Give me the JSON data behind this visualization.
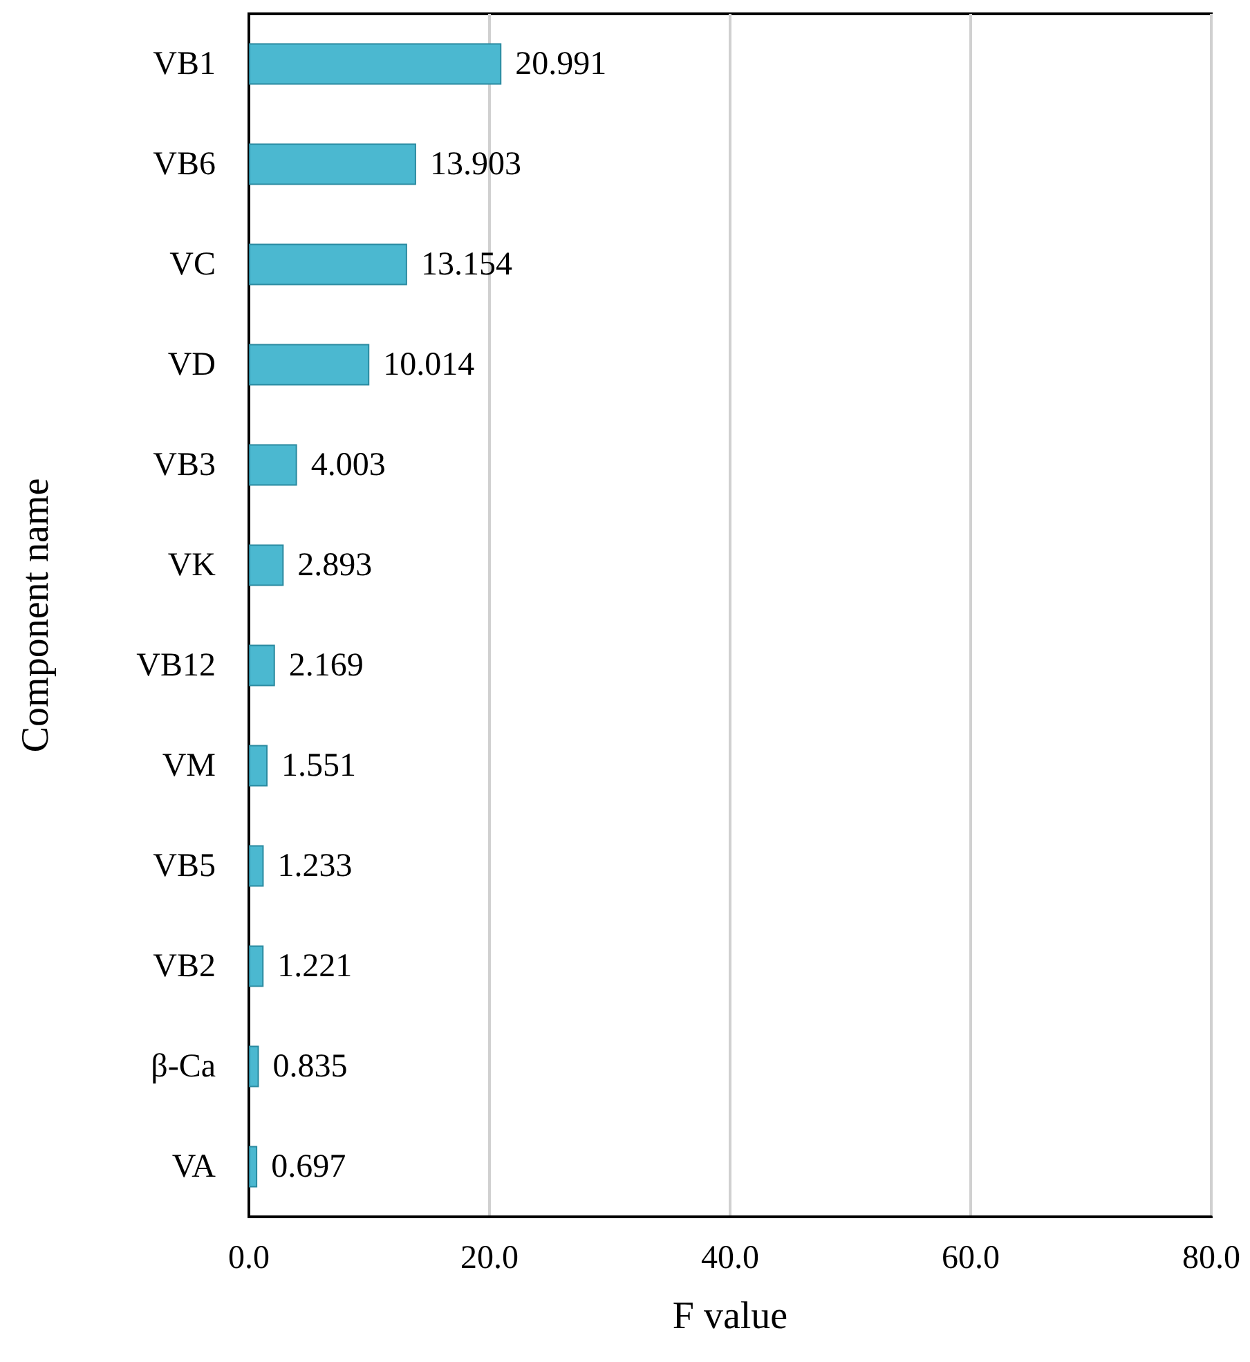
{
  "chart_data": {
    "type": "bar",
    "orientation": "horizontal",
    "xlabel": "F value",
    "ylabel": "Component name",
    "categories": [
      "VB1",
      "VB6",
      "VC",
      "VD",
      "VB3",
      "VK",
      "VB12",
      "VM",
      "VB5",
      "VB2",
      "β-Ca",
      "VA"
    ],
    "values": [
      20.991,
      13.903,
      13.154,
      10.014,
      4.003,
      2.893,
      2.169,
      1.551,
      1.233,
      1.221,
      0.835,
      0.697
    ],
    "color": "#4bb8d0",
    "xlim": [
      0,
      80
    ],
    "xticks": [
      {
        "value": 0,
        "label": "0.0"
      },
      {
        "value": 20,
        "label": "20.0"
      },
      {
        "value": 40,
        "label": "40.0"
      },
      {
        "value": 60,
        "label": "60.0"
      },
      {
        "value": 80,
        "label": "80.0"
      }
    ],
    "grid": "x",
    "data_labels": true
  }
}
